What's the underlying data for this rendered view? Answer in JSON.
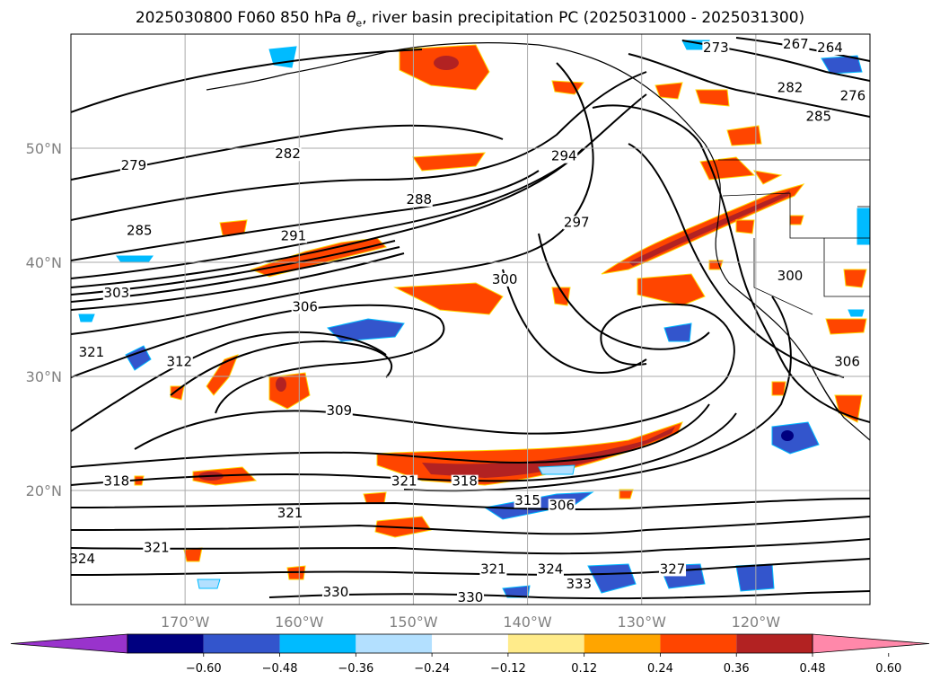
{
  "title": {
    "prefix": "2025030800 F060 850 hPa ",
    "theta": "θ",
    "sub": "e",
    "suffix": ", river basin precipitation PC (2025031000 - 2025031300)"
  },
  "map": {
    "lon_range": [
      -180,
      -110
    ],
    "lat_range": [
      10,
      60
    ],
    "lat_ticks": [
      {
        "v": 20,
        "t": "20°N"
      },
      {
        "v": 30,
        "t": "30°N"
      },
      {
        "v": 40,
        "t": "40°N"
      },
      {
        "v": 50,
        "t": "50°N"
      }
    ],
    "lon_ticks": [
      {
        "v": -170,
        "t": "170°W"
      },
      {
        "v": -160,
        "t": "160°W"
      },
      {
        "v": -150,
        "t": "150°W"
      },
      {
        "v": -140,
        "t": "140°W"
      },
      {
        "v": -130,
        "t": "130°W"
      },
      {
        "v": -120,
        "t": "120°W"
      }
    ],
    "grid": true,
    "grid_color": "#aaaaaa",
    "label_color": "#808080"
  },
  "contour_labels": [
    {
      "t": "279",
      "lon": -174.5,
      "lat": 48.2
    },
    {
      "t": "282",
      "lon": -161.0,
      "lat": 49.2
    },
    {
      "t": "285",
      "lon": -174.0,
      "lat": 42.5
    },
    {
      "t": "288",
      "lon": -149.5,
      "lat": 45.2
    },
    {
      "t": "291",
      "lon": -160.5,
      "lat": 42.0
    },
    {
      "t": "294",
      "lon": -136.8,
      "lat": 49.0
    },
    {
      "t": "297",
      "lon": -135.7,
      "lat": 43.2
    },
    {
      "t": "300",
      "lon": -142.0,
      "lat": 38.2
    },
    {
      "t": "303",
      "lon": -176.0,
      "lat": 37.0
    },
    {
      "t": "306",
      "lon": -159.5,
      "lat": 35.8
    },
    {
      "t": "309",
      "lon": -156.5,
      "lat": 26.7
    },
    {
      "t": "312",
      "lon": -170.5,
      "lat": 31.0
    },
    {
      "t": "318",
      "lon": -176.0,
      "lat": 20.5
    },
    {
      "t": "318",
      "lon": -145.5,
      "lat": 20.5
    },
    {
      "t": "321",
      "lon": -178.2,
      "lat": 31.8
    },
    {
      "t": "321",
      "lon": -160.8,
      "lat": 17.7
    },
    {
      "t": "321",
      "lon": -172.5,
      "lat": 14.7
    },
    {
      "t": "321",
      "lon": -150.8,
      "lat": 20.5
    },
    {
      "t": "321",
      "lon": -143.0,
      "lat": 12.8
    },
    {
      "t": "324",
      "lon": -138.0,
      "lat": 12.8
    },
    {
      "t": "324",
      "lon": -179.0,
      "lat": 13.7
    },
    {
      "t": "327",
      "lon": -127.3,
      "lat": 12.8
    },
    {
      "t": "330",
      "lon": -156.8,
      "lat": 10.8
    },
    {
      "t": "330",
      "lon": -145.0,
      "lat": 10.3
    },
    {
      "t": "333",
      "lon": -135.5,
      "lat": 11.5
    },
    {
      "t": "315",
      "lon": -140.0,
      "lat": 18.8
    },
    {
      "t": "306",
      "lon": -137.0,
      "lat": 18.4
    },
    {
      "t": "267",
      "lon": -116.5,
      "lat": 58.8
    },
    {
      "t": "264",
      "lon": -113.5,
      "lat": 58.5
    },
    {
      "t": "276",
      "lon": -111.5,
      "lat": 54.3
    },
    {
      "t": "273",
      "lon": -123.5,
      "lat": 58.5
    },
    {
      "t": "282",
      "lon": -117.0,
      "lat": 55.0
    },
    {
      "t": "285",
      "lon": -114.5,
      "lat": 52.5
    },
    {
      "t": "300",
      "lon": -117.0,
      "lat": 38.5
    },
    {
      "t": "306",
      "lon": -112.0,
      "lat": 31.0
    }
  ],
  "colorbar": {
    "colors": [
      "#9933cc",
      "#000080",
      "#3355cc",
      "#00bbff",
      "#b3e0ff",
      "#ffffff",
      "#ffeb8a",
      "#ffa500",
      "#ff4500",
      "#b22222",
      "#ff88aa"
    ],
    "ticks": [
      "−0.60",
      "−0.48",
      "−0.36",
      "−0.24",
      "−0.12",
      "0.12",
      "0.24",
      "0.36",
      "0.48",
      "0.60"
    ]
  }
}
